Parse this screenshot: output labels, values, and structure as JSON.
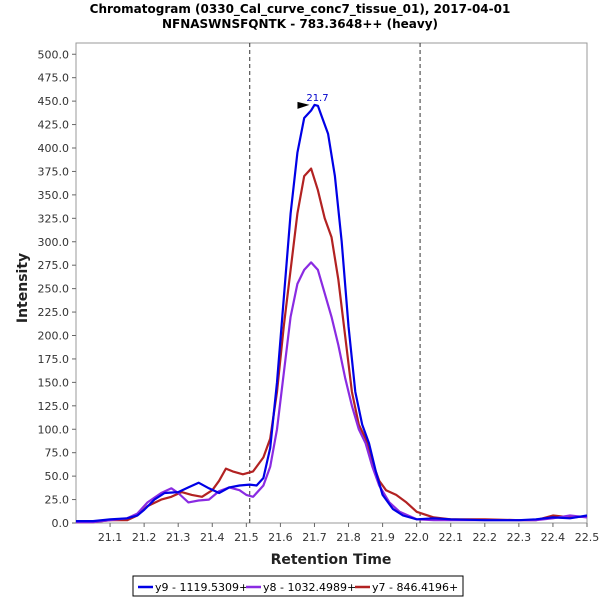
{
  "chart_data": {
    "type": "line",
    "title": "Chromatogram (0330_Cal_curve_conc7_tissue_01), 2017-04-01",
    "subtitle": "NFNASWNSFQNTK - 783.3648++ (heavy)",
    "xlabel": "Retention Time",
    "ylabel": "Intensity",
    "xlim": [
      21.0,
      22.5
    ],
    "ylim": [
      0,
      512
    ],
    "x_ticks": [
      "21.1",
      "21.2",
      "21.3",
      "21.4",
      "21.5",
      "21.6",
      "21.7",
      "21.8",
      "21.9",
      "22.0",
      "22.1",
      "22.2",
      "22.3",
      "22.4",
      "22.5"
    ],
    "y_ticks": [
      "0.0",
      "25.0",
      "50.0",
      "75.0",
      "100.0",
      "125.0",
      "150.0",
      "175.0",
      "200.0",
      "225.0",
      "250.0",
      "275.0",
      "300.0",
      "325.0",
      "350.0",
      "375.0",
      "400.0",
      "425.0",
      "450.0",
      "475.0",
      "500.0"
    ],
    "boundaries": [
      21.51,
      22.01
    ],
    "peak_annotation": {
      "label": "21.7",
      "x": 21.7,
      "y": 445,
      "color": "#0000cc"
    },
    "legend_position": "bottom",
    "series": [
      {
        "name": "y9 - 1119.5309+",
        "color": "#0000e6",
        "points": [
          [
            21.0,
            2
          ],
          [
            21.05,
            2
          ],
          [
            21.1,
            4
          ],
          [
            21.15,
            5
          ],
          [
            21.18,
            8
          ],
          [
            21.2,
            14
          ],
          [
            21.23,
            25
          ],
          [
            21.26,
            32
          ],
          [
            21.3,
            33
          ],
          [
            21.33,
            38
          ],
          [
            21.36,
            43
          ],
          [
            21.39,
            37
          ],
          [
            21.42,
            32
          ],
          [
            21.45,
            38
          ],
          [
            21.48,
            40
          ],
          [
            21.51,
            41
          ],
          [
            21.53,
            40
          ],
          [
            21.55,
            48
          ],
          [
            21.57,
            80
          ],
          [
            21.59,
            150
          ],
          [
            21.61,
            240
          ],
          [
            21.63,
            330
          ],
          [
            21.65,
            395
          ],
          [
            21.67,
            432
          ],
          [
            21.69,
            440
          ],
          [
            21.7,
            446
          ],
          [
            21.71,
            445
          ],
          [
            21.72,
            435
          ],
          [
            21.74,
            415
          ],
          [
            21.76,
            370
          ],
          [
            21.78,
            300
          ],
          [
            21.8,
            210
          ],
          [
            21.82,
            140
          ],
          [
            21.84,
            105
          ],
          [
            21.86,
            85
          ],
          [
            21.88,
            55
          ],
          [
            21.9,
            30
          ],
          [
            21.93,
            15
          ],
          [
            21.96,
            8
          ],
          [
            22.0,
            4
          ],
          [
            22.05,
            5
          ],
          [
            22.1,
            4
          ],
          [
            22.2,
            3
          ],
          [
            22.3,
            3
          ],
          [
            22.35,
            4
          ],
          [
            22.4,
            6
          ],
          [
            22.45,
            5
          ],
          [
            22.5,
            8
          ]
        ]
      },
      {
        "name": "y8 - 1032.4989+",
        "color": "#8a2be2",
        "points": [
          [
            21.0,
            1
          ],
          [
            21.05,
            1
          ],
          [
            21.1,
            3
          ],
          [
            21.15,
            5
          ],
          [
            21.18,
            10
          ],
          [
            21.21,
            22
          ],
          [
            21.25,
            32
          ],
          [
            21.28,
            37
          ],
          [
            21.3,
            32
          ],
          [
            21.33,
            22
          ],
          [
            21.36,
            24
          ],
          [
            21.39,
            25
          ],
          [
            21.42,
            34
          ],
          [
            21.45,
            38
          ],
          [
            21.48,
            35
          ],
          [
            21.5,
            30
          ],
          [
            21.52,
            28
          ],
          [
            21.55,
            40
          ],
          [
            21.57,
            60
          ],
          [
            21.59,
            100
          ],
          [
            21.61,
            160
          ],
          [
            21.63,
            220
          ],
          [
            21.65,
            255
          ],
          [
            21.67,
            270
          ],
          [
            21.69,
            278
          ],
          [
            21.71,
            270
          ],
          [
            21.73,
            245
          ],
          [
            21.75,
            220
          ],
          [
            21.77,
            190
          ],
          [
            21.79,
            155
          ],
          [
            21.81,
            125
          ],
          [
            21.83,
            100
          ],
          [
            21.85,
            85
          ],
          [
            21.87,
            60
          ],
          [
            21.89,
            40
          ],
          [
            21.92,
            22
          ],
          [
            21.95,
            12
          ],
          [
            22.0,
            4
          ],
          [
            22.05,
            3
          ],
          [
            22.1,
            3
          ],
          [
            22.2,
            3
          ],
          [
            22.3,
            3
          ],
          [
            22.35,
            3
          ],
          [
            22.4,
            5
          ],
          [
            22.45,
            8
          ],
          [
            22.5,
            6
          ]
        ]
      },
      {
        "name": "y7 - 846.4196+",
        "color": "#b22222",
        "points": [
          [
            21.0,
            1
          ],
          [
            21.05,
            1
          ],
          [
            21.1,
            3
          ],
          [
            21.15,
            3
          ],
          [
            21.18,
            8
          ],
          [
            21.21,
            18
          ],
          [
            21.25,
            25
          ],
          [
            21.28,
            28
          ],
          [
            21.31,
            33
          ],
          [
            21.34,
            30
          ],
          [
            21.37,
            28
          ],
          [
            21.4,
            35
          ],
          [
            21.42,
            45
          ],
          [
            21.44,
            58
          ],
          [
            21.46,
            55
          ],
          [
            21.49,
            52
          ],
          [
            21.52,
            55
          ],
          [
            21.55,
            70
          ],
          [
            21.57,
            90
          ],
          [
            21.59,
            140
          ],
          [
            21.61,
            210
          ],
          [
            21.63,
            270
          ],
          [
            21.65,
            330
          ],
          [
            21.67,
            370
          ],
          [
            21.69,
            378
          ],
          [
            21.71,
            355
          ],
          [
            21.73,
            325
          ],
          [
            21.75,
            305
          ],
          [
            21.77,
            260
          ],
          [
            21.79,
            200
          ],
          [
            21.81,
            140
          ],
          [
            21.83,
            105
          ],
          [
            21.85,
            90
          ],
          [
            21.87,
            65
          ],
          [
            21.89,
            45
          ],
          [
            21.91,
            35
          ],
          [
            21.94,
            30
          ],
          [
            21.97,
            22
          ],
          [
            22.0,
            12
          ],
          [
            22.05,
            6
          ],
          [
            22.1,
            4
          ],
          [
            22.2,
            4
          ],
          [
            22.3,
            3
          ],
          [
            22.35,
            3
          ],
          [
            22.4,
            8
          ],
          [
            22.45,
            6
          ],
          [
            22.5,
            7
          ]
        ]
      }
    ]
  }
}
